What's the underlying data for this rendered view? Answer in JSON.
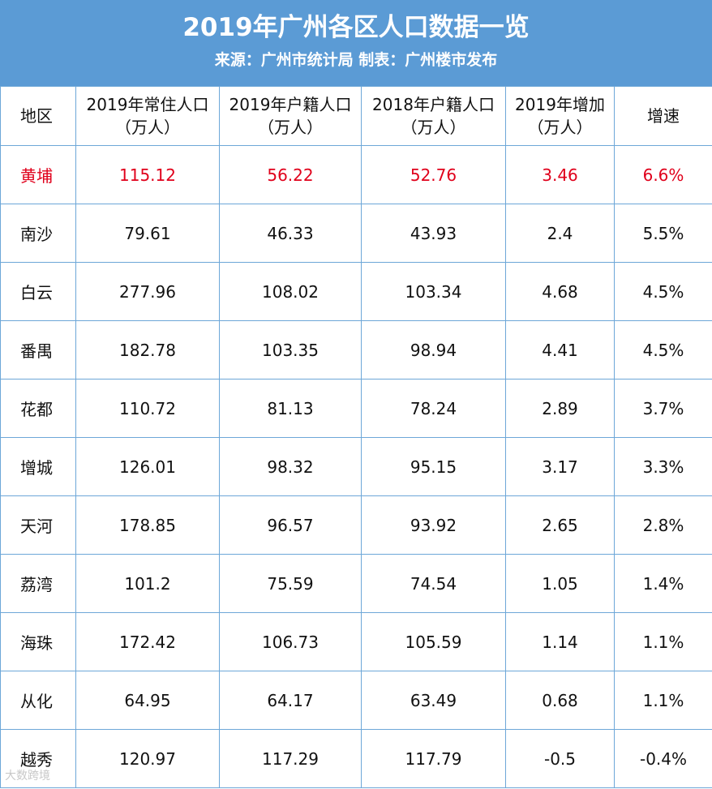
{
  "header": {
    "title": "2019年广州各区人口数据一览",
    "subtitle": "来源：广州市统计局 制表：广州楼市发布"
  },
  "table": {
    "columns": [
      "地区",
      "2019年常住人口（万人）",
      "2019年户籍人口（万人）",
      "2018年户籍人口（万人）",
      "2019年增加（万人）",
      "增速"
    ],
    "rows": [
      {
        "region": "黄埔",
        "resident_2019": "115.12",
        "registered_2019": "56.22",
        "registered_2018": "52.76",
        "increase_2019": "3.46",
        "growth": "6.6%",
        "highlight": true
      },
      {
        "region": "南沙",
        "resident_2019": "79.61",
        "registered_2019": "46.33",
        "registered_2018": "43.93",
        "increase_2019": "2.4",
        "growth": "5.5%"
      },
      {
        "region": "白云",
        "resident_2019": "277.96",
        "registered_2019": "108.02",
        "registered_2018": "103.34",
        "increase_2019": "4.68",
        "growth": "4.5%"
      },
      {
        "region": "番禺",
        "resident_2019": "182.78",
        "registered_2019": "103.35",
        "registered_2018": "98.94",
        "increase_2019": "4.41",
        "growth": "4.5%"
      },
      {
        "region": "花都",
        "resident_2019": "110.72",
        "registered_2019": "81.13",
        "registered_2018": "78.24",
        "increase_2019": "2.89",
        "growth": "3.7%"
      },
      {
        "region": "增城",
        "resident_2019": "126.01",
        "registered_2019": "98.32",
        "registered_2018": "95.15",
        "increase_2019": "3.17",
        "growth": "3.3%"
      },
      {
        "region": "天河",
        "resident_2019": "178.85",
        "registered_2019": "96.57",
        "registered_2018": "93.92",
        "increase_2019": "2.65",
        "growth": "2.8%"
      },
      {
        "region": "荔湾",
        "resident_2019": "101.2",
        "registered_2019": "75.59",
        "registered_2018": "74.54",
        "increase_2019": "1.05",
        "growth": "1.4%"
      },
      {
        "region": "海珠",
        "resident_2019": "172.42",
        "registered_2019": "106.73",
        "registered_2018": "105.59",
        "increase_2019": "1.14",
        "growth": "1.1%"
      },
      {
        "region": "从化",
        "resident_2019": "64.95",
        "registered_2019": "64.17",
        "registered_2018": "63.49",
        "increase_2019": "0.68",
        "growth": "1.1%"
      },
      {
        "region": "越秀",
        "resident_2019": "120.97",
        "registered_2019": "117.29",
        "registered_2018": "117.79",
        "increase_2019": "-0.5",
        "growth": "-0.4%"
      }
    ]
  },
  "colors": {
    "header_bg": "#5b9bd5",
    "grid_line": "#6da7d8",
    "highlight_text": "#e0001b"
  },
  "watermark": "大数跨境"
}
